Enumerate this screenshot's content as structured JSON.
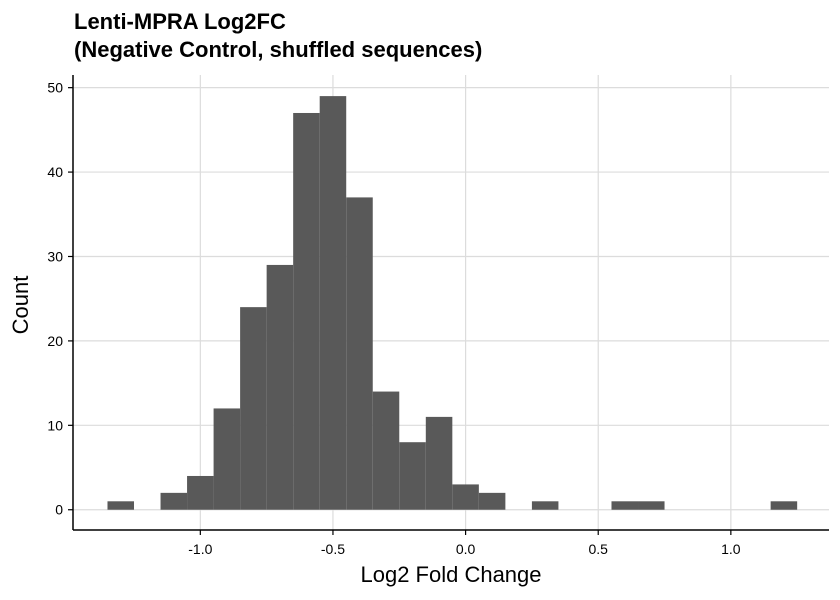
{
  "chart_data": {
    "type": "bar",
    "title": "Lenti-MPRA Log2FC",
    "subtitle": "(Negative Control, shuffled sequences)",
    "xlabel": "Log2 Fold Change",
    "ylabel": "Count",
    "bin_width": 0.1,
    "bins": [
      {
        "x0": -1.35,
        "x1": -1.25,
        "count": 1
      },
      {
        "x0": -1.15,
        "x1": -1.05,
        "count": 2
      },
      {
        "x0": -1.05,
        "x1": -0.95,
        "count": 4
      },
      {
        "x0": -0.95,
        "x1": -0.85,
        "count": 12
      },
      {
        "x0": -0.85,
        "x1": -0.75,
        "count": 24
      },
      {
        "x0": -0.75,
        "x1": -0.65,
        "count": 29
      },
      {
        "x0": -0.65,
        "x1": -0.55,
        "count": 47
      },
      {
        "x0": -0.55,
        "x1": -0.45,
        "count": 49
      },
      {
        "x0": -0.45,
        "x1": -0.35,
        "count": 37
      },
      {
        "x0": -0.35,
        "x1": -0.25,
        "count": 14
      },
      {
        "x0": -0.25,
        "x1": -0.15,
        "count": 8
      },
      {
        "x0": -0.15,
        "x1": -0.05,
        "count": 11
      },
      {
        "x0": -0.05,
        "x1": 0.05,
        "count": 3
      },
      {
        "x0": 0.05,
        "x1": 0.15,
        "count": 2
      },
      {
        "x0": 0.25,
        "x1": 0.35,
        "count": 1
      },
      {
        "x0": 0.55,
        "x1": 0.65,
        "count": 1
      },
      {
        "x0": 0.65,
        "x1": 0.75,
        "count": 1
      },
      {
        "x0": 1.15,
        "x1": 1.25,
        "count": 1
      }
    ],
    "xticks": [
      -1.0,
      -0.5,
      0.0,
      0.5,
      1.0
    ],
    "xtick_labels": [
      "-1.0",
      "-0.5",
      "0.0",
      "0.5",
      "1.0"
    ],
    "yticks": [
      0,
      10,
      20,
      30,
      40,
      50
    ],
    "ytick_labels": [
      "0",
      "10",
      "20",
      "30",
      "40",
      "50"
    ],
    "xlim": [
      -1.48,
      1.37
    ],
    "ylim": [
      -2.4,
      51.5
    ],
    "grid": true,
    "bar_color": "#595959",
    "grid_color": "#dcdcdc"
  }
}
